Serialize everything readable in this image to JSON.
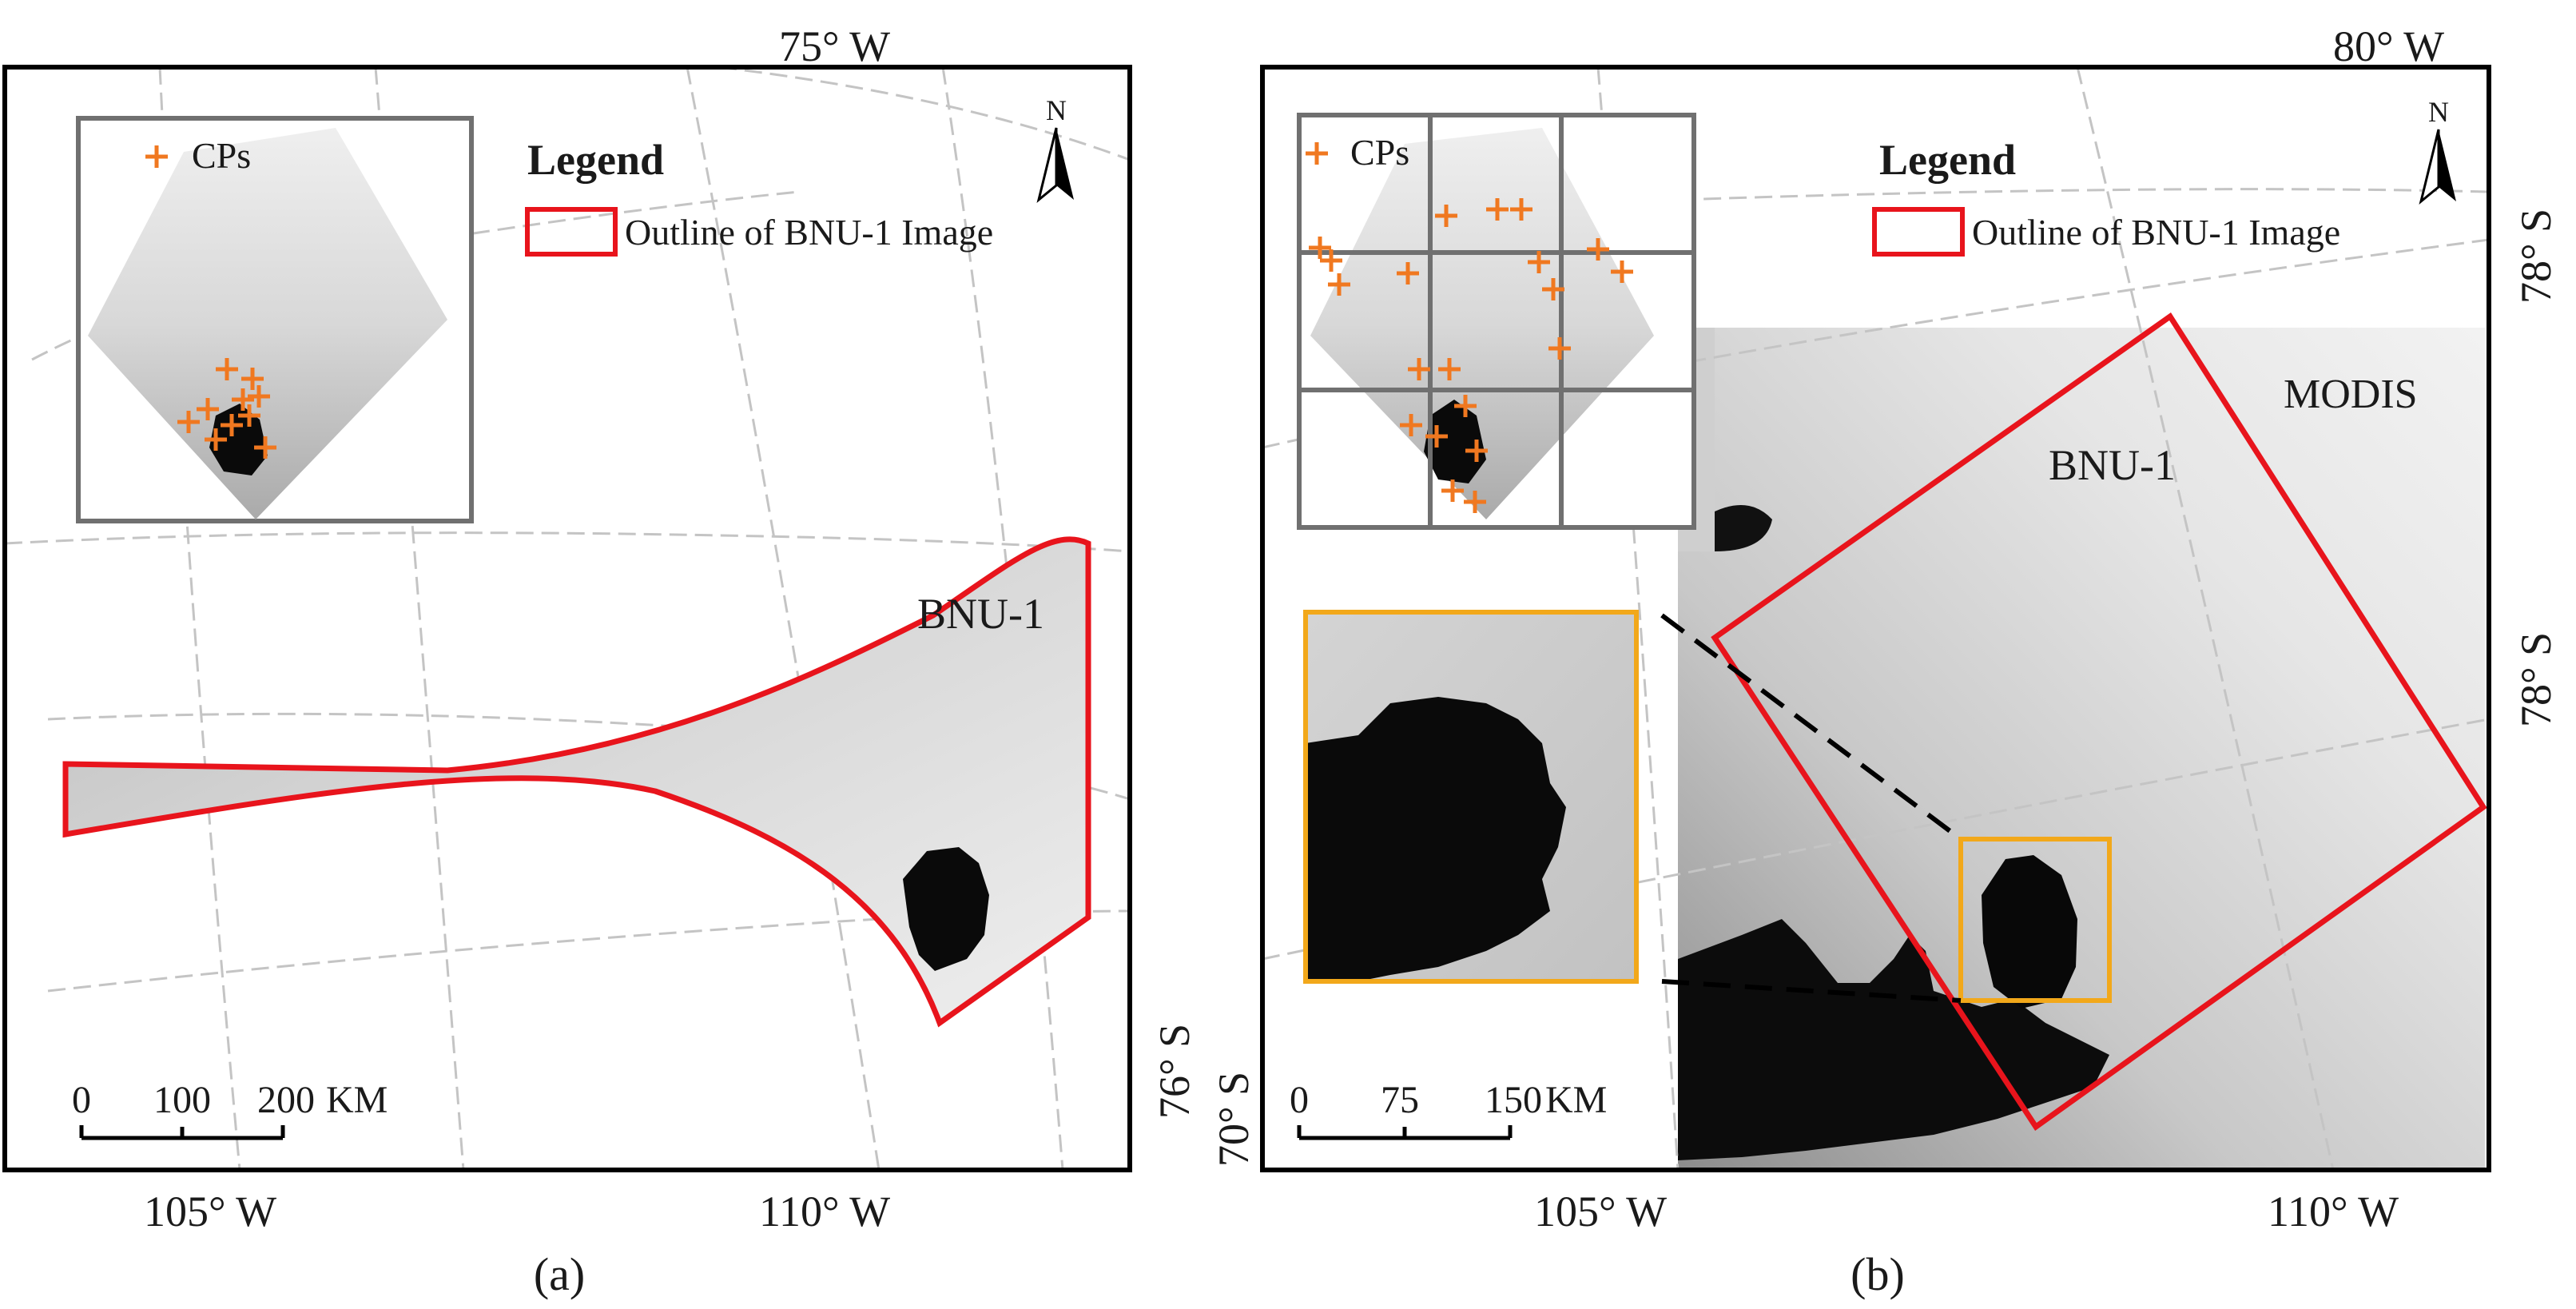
{
  "figure": {
    "panel_a": {
      "caption": "(a)",
      "top_coord": "75° W",
      "bottom_coords": [
        "105° W",
        "110° W"
      ],
      "right_coord": "76° S",
      "image_label": "BNU-1",
      "legend": {
        "title": "Legend",
        "cp_label": "CPs",
        "outline_label": "Outline of BNU-1 Image"
      },
      "north_label": "N",
      "scale_bar": {
        "ticks": [
          "0",
          "100",
          "200"
        ],
        "unit": "KM"
      }
    },
    "panel_b": {
      "caption": "(b)",
      "top_coord": "80° W",
      "bottom_coords": [
        "105° W",
        "110° W"
      ],
      "left_coord": "70° S",
      "right_coords": [
        "78° S",
        "78° S"
      ],
      "image_label": "BNU-1",
      "modis_label": "MODIS",
      "legend": {
        "title": "Legend",
        "cp_label": "CPs",
        "outline_label": "Outline of BNU-1 Image"
      },
      "north_label": "N",
      "scale_bar": {
        "ticks": [
          "0",
          "75",
          "150"
        ],
        "unit": "KM"
      }
    },
    "colors": {
      "outline": "#e8141c",
      "cp_marker": "#f07820",
      "zoom_box": "#f2a81a",
      "frame": "#000000",
      "inset_frame": "#707070",
      "graticule": "#bdbdbd"
    }
  }
}
